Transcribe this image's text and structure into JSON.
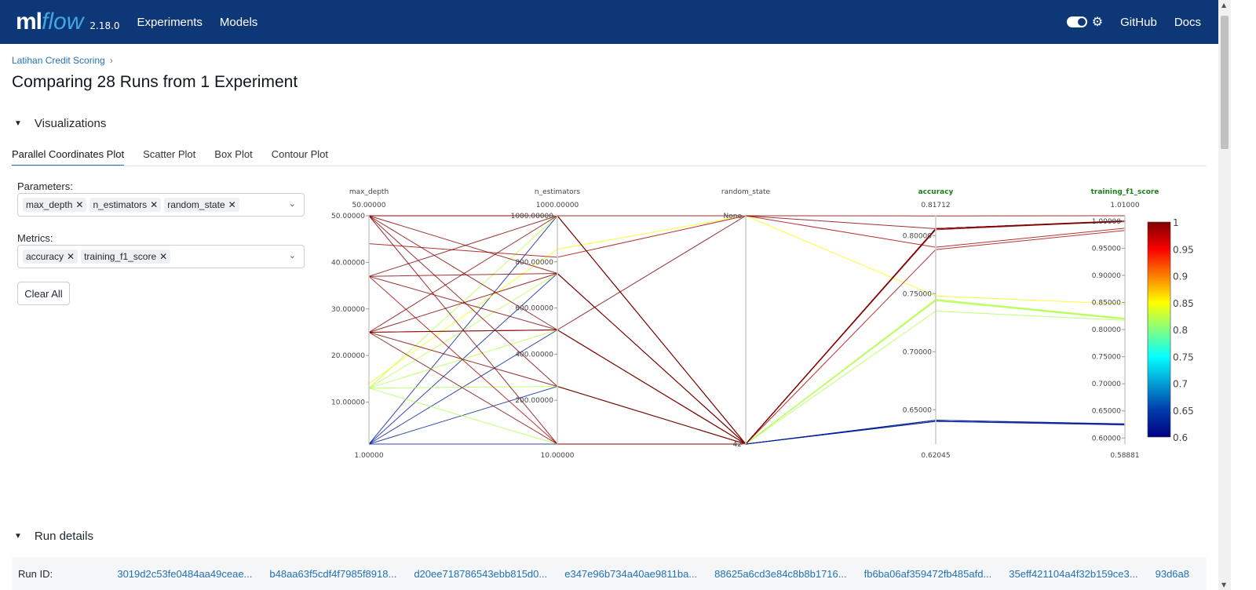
{
  "header": {
    "logo_ml": "ml",
    "logo_flow": "flow",
    "version": "2.18.0",
    "nav": [
      "Experiments",
      "Models"
    ],
    "right": [
      "GitHub",
      "Docs"
    ],
    "icons": [
      "theme-toggle",
      "gear-icon"
    ]
  },
  "breadcrumb": {
    "label": "Latihan Credit Scoring",
    "sep": "›"
  },
  "title": "Comparing 28 Runs from 1 Experiment",
  "visualizations": {
    "label": "Visualizations",
    "tabs": [
      "Parallel Coordinates Plot",
      "Scatter Plot",
      "Box Plot",
      "Contour Plot"
    ],
    "active": 0
  },
  "params": {
    "label": "Parameters:",
    "chips": [
      "max_depth",
      "n_estimators",
      "random_state"
    ]
  },
  "metrics": {
    "label": "Metrics:",
    "chips": [
      "accuracy",
      "training_f1_score"
    ]
  },
  "clear_all": "Clear All",
  "run_details": {
    "label": "Run details",
    "row_label": "Run ID:",
    "ids": [
      "3019d2c53fe0484aa49ceae...",
      "b48aa63f5cdf4f7985f8918...",
      "d20ee718786543ebb815d0...",
      "e347e96b734a40ae9811ba...",
      "88625a6cd3e84c8b8b1716...",
      "fb6ba06af359472fb485afd...",
      "35eff421104a4f32b159ce3...",
      "93d6a8"
    ]
  },
  "chart_data": {
    "type": "parallel_coordinates",
    "dimensions": [
      {
        "name": "max_depth",
        "range": [
          1,
          50
        ],
        "top_label": "50.00000",
        "bottom_label": "1.00000",
        "ticks": [
          "10.00000",
          "20.00000",
          "30.00000",
          "40.00000",
          "50.00000"
        ],
        "tick_values": [
          10,
          20,
          30,
          40,
          50
        ],
        "metric": false
      },
      {
        "name": "n_estimators",
        "range": [
          10,
          1000
        ],
        "top_label": "1000.00000",
        "bottom_label": "10.00000",
        "ticks": [
          "200.00000",
          "400.00000",
          "600.00000",
          "800.00000",
          "1000.00000"
        ],
        "tick_values": [
          200,
          400,
          600,
          800,
          1000
        ],
        "metric": false
      },
      {
        "name": "random_state",
        "categories": [
          "42",
          "None"
        ],
        "top_label": "",
        "bottom_label": "",
        "ticks": [
          "42",
          "None"
        ],
        "tick_values": [
          0,
          1
        ],
        "metric": false
      },
      {
        "name": "accuracy",
        "range": [
          0.62045,
          0.81712
        ],
        "top_label": "0.81712",
        "bottom_label": "0.62045",
        "ticks": [
          "0.65000",
          "0.70000",
          "0.75000",
          "0.80000"
        ],
        "tick_values": [
          0.65,
          0.7,
          0.75,
          0.8
        ],
        "metric": true
      },
      {
        "name": "training_f1_score",
        "range": [
          0.58881,
          1.01
        ],
        "top_label": "1.01000",
        "bottom_label": "0.58881",
        "ticks": [
          "0.60000",
          "0.65000",
          "0.70000",
          "0.75000",
          "0.80000",
          "0.85000",
          "0.90000",
          "0.95000",
          "1.00000"
        ],
        "tick_values": [
          0.6,
          0.65,
          0.7,
          0.75,
          0.8,
          0.85,
          0.9,
          0.95,
          1.0
        ],
        "metric": true
      }
    ],
    "color_by": "training_f1_score",
    "colorbar": {
      "range": [
        0.6,
        1.0
      ],
      "ticks": [
        "0.6",
        "0.65",
        "0.7",
        "0.75",
        "0.8",
        "0.85",
        "0.9",
        "0.95",
        "1"
      ],
      "tick_values": [
        0.6,
        0.65,
        0.7,
        0.75,
        0.8,
        0.85,
        0.9,
        0.95,
        1.0
      ]
    },
    "colorscale": [
      "#000083",
      "#003caa",
      "#05ffff",
      "#ffff00",
      "#fa0000",
      "#800000"
    ],
    "metric_label_color": "#1a7f1a",
    "runs": [
      [
        1,
        1000,
        "42",
        0.641,
        0.626
      ],
      [
        1,
        750,
        "42",
        0.641,
        0.626
      ],
      [
        1,
        505,
        "42",
        0.64,
        0.625
      ],
      [
        1,
        260,
        "42",
        0.641,
        0.625
      ],
      [
        1,
        10,
        "42",
        0.64,
        0.624
      ],
      [
        13,
        1000,
        "42",
        0.745,
        0.82
      ],
      [
        13,
        750,
        "42",
        0.745,
        0.821
      ],
      [
        13,
        505,
        "42",
        0.744,
        0.82
      ],
      [
        13,
        260,
        "42",
        0.744,
        0.819
      ],
      [
        13,
        10,
        "42",
        0.735,
        0.817
      ],
      [
        14,
        855,
        "None",
        0.748,
        0.847
      ],
      [
        50,
        1000,
        "42",
        0.806,
        1.0
      ],
      [
        50,
        750,
        "42",
        0.806,
        1.0
      ],
      [
        50,
        505,
        "42",
        0.806,
        1.001
      ],
      [
        50,
        260,
        "42",
        0.806,
        1.0
      ],
      [
        50,
        10,
        "42",
        0.806,
        1.0
      ],
      [
        50,
        1000,
        "None",
        0.817,
        1.01
      ],
      [
        44,
        820,
        "None",
        0.79,
        0.987
      ],
      [
        37,
        1000,
        "42",
        0.806,
        1.0
      ],
      [
        37,
        750,
        "42",
        0.806,
        0.999
      ],
      [
        37,
        505,
        "42",
        0.805,
        1.0
      ],
      [
        37,
        10,
        "42",
        0.788,
        0.983
      ],
      [
        25,
        1000,
        "42",
        0.806,
        1.0
      ],
      [
        25,
        750,
        "42",
        0.806,
        1.0
      ],
      [
        25,
        505,
        "None",
        0.806,
        1.0
      ],
      [
        25,
        260,
        "42",
        0.806,
        1.0
      ],
      [
        25,
        10,
        "42",
        0.806,
        1.0
      ],
      [
        25,
        505,
        "42",
        0.806,
        1.0
      ]
    ]
  }
}
